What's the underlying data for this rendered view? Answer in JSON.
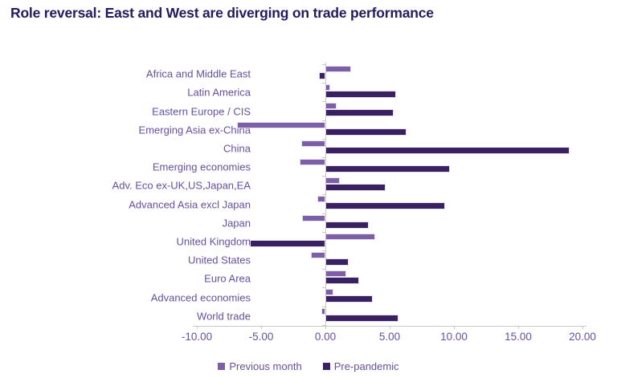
{
  "title": "Role reversal: East and West are diverging on trade performance",
  "colors": {
    "title_text": "#241a5e",
    "axis_text": "#6650a0",
    "previous_month": "#7d5fa7",
    "pre_pandemic": "#3a2162",
    "axis_line": "#c9c9c9",
    "bar_border": "#e7e0f1"
  },
  "chart_data": {
    "type": "bar",
    "orientation": "horizontal",
    "title": "Role reversal: East and West are diverging on trade performance",
    "categories": [
      "Africa and Middle East",
      "Latin America",
      "Eastern Europe / CIS",
      "Emerging Asia ex-China",
      "China",
      "Emerging economies",
      "Adv. Eco ex-UK,US,Japan,EA",
      "Advanced Asia excl Japan",
      "Japan",
      "United Kingdom",
      "United States",
      "Euro Area",
      "Advanced economies",
      "World trade"
    ],
    "series": [
      {
        "name": "Previous month",
        "color": "#7d5fa7",
        "values": [
          2.0,
          0.4,
          0.9,
          -6.9,
          -1.9,
          -2.0,
          1.1,
          -0.6,
          -1.8,
          3.9,
          -1.1,
          1.6,
          0.6,
          -0.3
        ]
      },
      {
        "name": "Pre-pandemic",
        "color": "#3a2162",
        "values": [
          -0.5,
          5.5,
          5.3,
          6.3,
          19.0,
          9.7,
          4.7,
          9.3,
          3.4,
          -5.9,
          1.8,
          2.6,
          3.7,
          5.7
        ]
      }
    ],
    "xlabel": "",
    "ylabel": "",
    "xlim": [
      -10,
      20
    ],
    "x_ticks": [
      "-10.00",
      "-5.00",
      "0.00",
      "5.00",
      "10.00",
      "15.00",
      "20.00"
    ],
    "x_tick_values": [
      -10,
      -5,
      0,
      5,
      10,
      15,
      20
    ],
    "grid": false,
    "legend_position": "bottom"
  }
}
